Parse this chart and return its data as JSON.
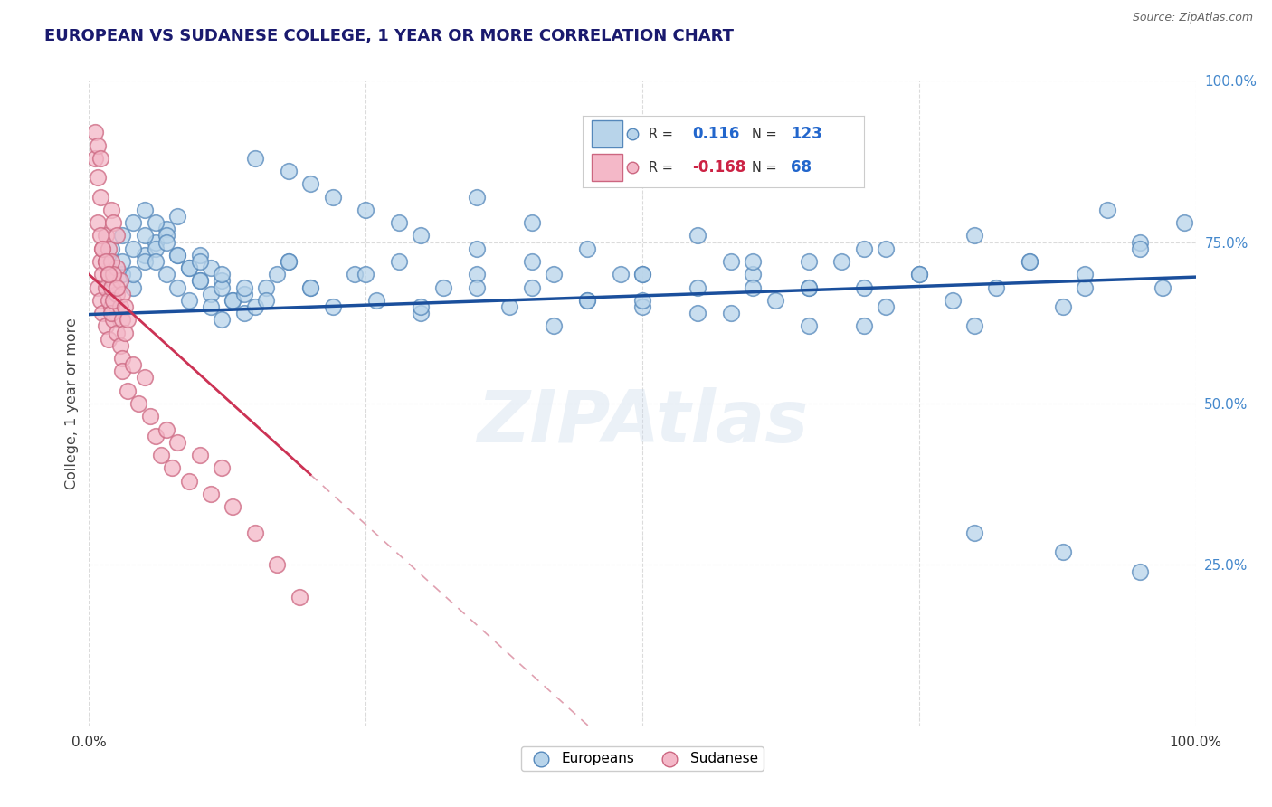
{
  "title": "EUROPEAN VS SUDANESE COLLEGE, 1 YEAR OR MORE CORRELATION CHART",
  "source_text": "Source: ZipAtlas.com",
  "ylabel": "College, 1 year or more",
  "xlim": [
    0.0,
    1.0
  ],
  "ylim": [
    0.0,
    1.0
  ],
  "watermark": "ZIPAtlas",
  "legend_blue_r": "0.116",
  "legend_blue_n": "123",
  "legend_pink_r": "-0.168",
  "legend_pink_n": "68",
  "blue_color": "#b8d4ea",
  "blue_edge_color": "#5588bb",
  "blue_line_color": "#1a4f9c",
  "pink_color": "#f4b8c8",
  "pink_edge_color": "#cc6680",
  "pink_line_color": "#cc3355",
  "dashed_line_color": "#e0a0b0",
  "grid_color": "#d8d8d8",
  "background_color": "#ffffff",
  "title_color": "#1a1a6e",
  "title_fontsize": 13,
  "axis_label_color": "#444444",
  "right_tick_color": "#4488cc",
  "legend_r_color": "#2266cc",
  "legend_n_color": "#cc2244",
  "blue_scatter_x": [
    0.02,
    0.03,
    0.04,
    0.02,
    0.03,
    0.04,
    0.05,
    0.03,
    0.04,
    0.05,
    0.06,
    0.04,
    0.05,
    0.06,
    0.07,
    0.05,
    0.06,
    0.07,
    0.08,
    0.06,
    0.07,
    0.08,
    0.07,
    0.08,
    0.09,
    0.08,
    0.09,
    0.1,
    0.09,
    0.1,
    0.11,
    0.1,
    0.11,
    0.12,
    0.11,
    0.12,
    0.13,
    0.12,
    0.13,
    0.14,
    0.14,
    0.15,
    0.16,
    0.17,
    0.18,
    0.2,
    0.22,
    0.24,
    0.26,
    0.28,
    0.3,
    0.32,
    0.35,
    0.38,
    0.4,
    0.42,
    0.45,
    0.48,
    0.5,
    0.55,
    0.58,
    0.6,
    0.62,
    0.65,
    0.68,
    0.7,
    0.72,
    0.75,
    0.78,
    0.8,
    0.82,
    0.85,
    0.88,
    0.9,
    0.92,
    0.95,
    0.97,
    0.99,
    0.15,
    0.2,
    0.25,
    0.3,
    0.35,
    0.4,
    0.45,
    0.5,
    0.55,
    0.6,
    0.65,
    0.7,
    0.75,
    0.8,
    0.85,
    0.9,
    0.95,
    0.18,
    0.22,
    0.28,
    0.35,
    0.42,
    0.5,
    0.58,
    0.65,
    0.72,
    0.8,
    0.88,
    0.95,
    0.1,
    0.12,
    0.14,
    0.16,
    0.18,
    0.2,
    0.25,
    0.3,
    0.35,
    0.4,
    0.45,
    0.5,
    0.55,
    0.6,
    0.65,
    0.7
  ],
  "blue_scatter_y": [
    0.72,
    0.7,
    0.68,
    0.74,
    0.72,
    0.7,
    0.73,
    0.76,
    0.74,
    0.72,
    0.75,
    0.78,
    0.76,
    0.74,
    0.77,
    0.8,
    0.78,
    0.76,
    0.79,
    0.72,
    0.7,
    0.73,
    0.75,
    0.73,
    0.71,
    0.68,
    0.66,
    0.69,
    0.71,
    0.69,
    0.67,
    0.73,
    0.71,
    0.69,
    0.65,
    0.63,
    0.66,
    0.68,
    0.66,
    0.64,
    0.67,
    0.65,
    0.68,
    0.7,
    0.72,
    0.68,
    0.65,
    0.7,
    0.66,
    0.72,
    0.64,
    0.68,
    0.7,
    0.65,
    0.68,
    0.62,
    0.66,
    0.7,
    0.65,
    0.68,
    0.64,
    0.7,
    0.66,
    0.62,
    0.72,
    0.68,
    0.65,
    0.7,
    0.66,
    0.62,
    0.68,
    0.72,
    0.65,
    0.7,
    0.8,
    0.75,
    0.68,
    0.78,
    0.88,
    0.84,
    0.8,
    0.76,
    0.82,
    0.78,
    0.74,
    0.7,
    0.76,
    0.72,
    0.68,
    0.74,
    0.7,
    0.76,
    0.72,
    0.68,
    0.74,
    0.86,
    0.82,
    0.78,
    0.74,
    0.7,
    0.66,
    0.72,
    0.68,
    0.74,
    0.3,
    0.27,
    0.24,
    0.72,
    0.7,
    0.68,
    0.66,
    0.72,
    0.68,
    0.7,
    0.65,
    0.68,
    0.72,
    0.66,
    0.7,
    0.64,
    0.68,
    0.72,
    0.62
  ],
  "pink_scatter_x": [
    0.008,
    0.01,
    0.012,
    0.015,
    0.018,
    0.02,
    0.022,
    0.025,
    0.028,
    0.03,
    0.01,
    0.012,
    0.015,
    0.018,
    0.02,
    0.022,
    0.025,
    0.028,
    0.03,
    0.032,
    0.012,
    0.015,
    0.018,
    0.02,
    0.022,
    0.025,
    0.028,
    0.03,
    0.032,
    0.035,
    0.015,
    0.018,
    0.02,
    0.022,
    0.025,
    0.008,
    0.01,
    0.012,
    0.015,
    0.018,
    0.02,
    0.022,
    0.025,
    0.03,
    0.035,
    0.04,
    0.045,
    0.05,
    0.055,
    0.06,
    0.065,
    0.07,
    0.075,
    0.08,
    0.09,
    0.1,
    0.11,
    0.12,
    0.13,
    0.15,
    0.17,
    0.19,
    0.005,
    0.008,
    0.01,
    0.005,
    0.008,
    0.01
  ],
  "pink_scatter_y": [
    0.68,
    0.66,
    0.64,
    0.62,
    0.6,
    0.65,
    0.63,
    0.61,
    0.59,
    0.57,
    0.72,
    0.7,
    0.68,
    0.66,
    0.64,
    0.69,
    0.67,
    0.65,
    0.63,
    0.61,
    0.74,
    0.72,
    0.7,
    0.68,
    0.66,
    0.71,
    0.69,
    0.67,
    0.65,
    0.63,
    0.76,
    0.74,
    0.72,
    0.7,
    0.68,
    0.78,
    0.76,
    0.74,
    0.72,
    0.7,
    0.8,
    0.78,
    0.76,
    0.55,
    0.52,
    0.56,
    0.5,
    0.54,
    0.48,
    0.45,
    0.42,
    0.46,
    0.4,
    0.44,
    0.38,
    0.42,
    0.36,
    0.4,
    0.34,
    0.3,
    0.25,
    0.2,
    0.88,
    0.85,
    0.82,
    0.92,
    0.9,
    0.88
  ]
}
